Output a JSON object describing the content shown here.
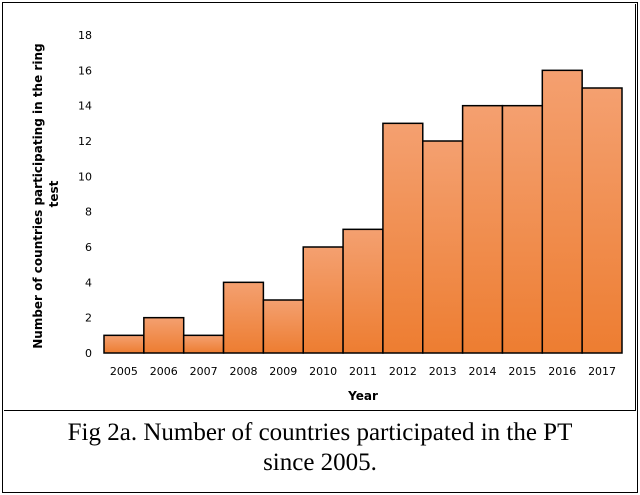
{
  "chart_data": {
    "type": "bar",
    "categories": [
      "2005",
      "2006",
      "2007",
      "2008",
      "2009",
      "2010",
      "2011",
      "2012",
      "2013",
      "2014",
      "2015",
      "2016",
      "2017"
    ],
    "values": [
      1,
      2,
      1,
      4,
      3,
      6,
      7,
      13,
      12,
      14,
      14,
      16,
      15
    ],
    "title": "",
    "xlabel": "Year",
    "ylabel": [
      "Number of countries participating in the ring",
      "test"
    ],
    "ylim": [
      0,
      18
    ],
    "yticks": [
      "0",
      "2",
      "4",
      "6",
      "8",
      "10",
      "12",
      "14",
      "16",
      "18"
    ],
    "grid": false,
    "legend": "none",
    "bar_color": "#ed7d31",
    "bar_gradient_top": "#f4a070",
    "bar_edge_color": "#000000"
  },
  "caption": {
    "line1": "Fig 2a. Number of countries participated in the PT",
    "line2": "since 2005."
  }
}
